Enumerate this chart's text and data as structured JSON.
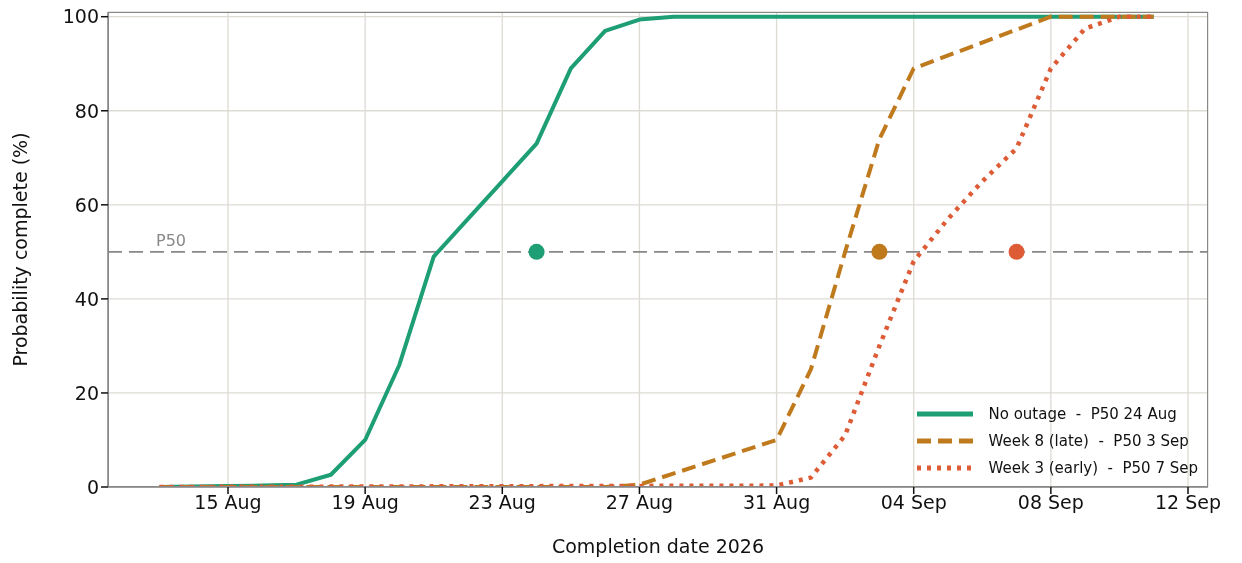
{
  "chart_data": {
    "type": "line",
    "xlabel": "Completion date 2026",
    "ylabel": "Probability complete (%)",
    "xlim": [
      "2026-08-11T12:00",
      "2026-09-12T14:00"
    ],
    "xticks": [
      {
        "value": "2026-08-15",
        "label": "15 Aug"
      },
      {
        "value": "2026-08-19",
        "label": "19 Aug"
      },
      {
        "value": "2026-08-23",
        "label": "23 Aug"
      },
      {
        "value": "2026-08-27",
        "label": "27 Aug"
      },
      {
        "value": "2026-08-31",
        "label": "31 Aug"
      },
      {
        "value": "2026-09-04",
        "label": "04 Sep"
      },
      {
        "value": "2026-09-08",
        "label": "08 Sep"
      },
      {
        "value": "2026-09-12",
        "label": "12 Sep"
      }
    ],
    "ylim": [
      0,
      101
    ],
    "yticks": [
      0,
      20,
      40,
      60,
      80,
      100
    ],
    "grid": true,
    "legend": "bottom right",
    "marker": "none",
    "series": [
      {
        "name": "No outage  -  P50 24 Aug",
        "color": "#1d9e74",
        "line_style": "solid",
        "x": [
          "2026-08-13",
          "2026-08-14",
          "2026-08-15",
          "2026-08-16",
          "2026-08-17",
          "2026-08-18",
          "2026-08-19",
          "2026-08-20",
          "2026-08-21",
          "2026-08-22",
          "2026-08-23",
          "2026-08-24",
          "2026-08-25",
          "2026-08-26",
          "2026-08-27",
          "2026-08-28",
          "2026-09-11"
        ],
        "values": [
          0,
          0.1,
          0.2,
          0.3,
          0.5,
          2.6,
          10,
          26,
          49,
          57,
          65,
          73,
          89,
          97,
          99.4,
          100,
          100
        ]
      },
      {
        "name": "Week 8 (late)  -  P50 3 Sep",
        "color": "#c07a1e",
        "line_style": "dashed",
        "x": [
          "2026-08-13",
          "2026-08-26",
          "2026-08-27",
          "2026-08-31",
          "2026-09-01",
          "2026-09-02",
          "2026-09-03",
          "2026-09-04",
          "2026-09-08",
          "2026-09-11"
        ],
        "values": [
          0,
          0,
          0.5,
          10,
          25,
          50,
          74,
          89,
          100,
          100
        ]
      },
      {
        "name": "Week 3 (early)  -  P50 7 Sep",
        "color": "#dd5b35",
        "line_style": "dotted",
        "x": [
          "2026-08-13",
          "2026-08-31",
          "2026-09-01",
          "2026-09-02",
          "2026-09-03",
          "2026-09-04",
          "2026-09-05",
          "2026-09-06",
          "2026-09-07",
          "2026-09-08",
          "2026-09-09",
          "2026-09-10",
          "2026-09-11"
        ],
        "values": [
          0,
          0.3,
          2,
          11,
          30,
          48,
          57,
          65,
          72,
          89,
          97.5,
          100,
          100
        ]
      },
      {
        "type": "scatter",
        "marker": "circle",
        "x": [
          "2026-08-24",
          "2026-09-03",
          "2026-09-07"
        ],
        "values": [
          50,
          50,
          50
        ],
        "colors": [
          "#1d9e74",
          "#c07a1e",
          "#dd5b35"
        ]
      }
    ],
    "ref_lines": [
      {
        "axis": "y",
        "value": 50,
        "label": "P50",
        "color": "#888888",
        "line_style": "dashed"
      }
    ]
  }
}
